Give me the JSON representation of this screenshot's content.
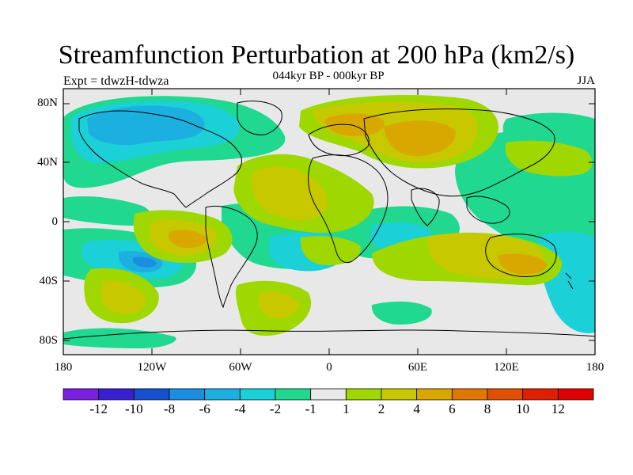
{
  "title": "Streamfunction Perturbation at 200 hPa (km2/s)",
  "subtitle": "044kyr BP - 000kyr BP",
  "left_label": "Expt = tdwzH-tdwza",
  "right_label": "JJA",
  "lat_labels": [
    "80N",
    "40N",
    "0",
    "40S",
    "80S"
  ],
  "lon_labels": [
    "180",
    "120W",
    "60W",
    "0",
    "60E",
    "120E",
    "180"
  ],
  "colorbar": {
    "ticks": [
      "-12",
      "-10",
      "-8",
      "-6",
      "-4",
      "-2",
      "-1",
      "1",
      "2",
      "4",
      "6",
      "8",
      "10",
      "12"
    ],
    "colors": [
      "#7a1fe0",
      "#3a1fd0",
      "#1550d0",
      "#1c8ee0",
      "#1cb0e0",
      "#1cd0d8",
      "#20d890",
      "#e8e8e8",
      "#9ed800",
      "#c8c800",
      "#d8a800",
      "#e07800",
      "#e05000",
      "#e01e00",
      "#e00000"
    ]
  },
  "map": {
    "background_color": "#e8e8e8",
    "regions": [
      {
        "name": "arctic-canada-negative",
        "level": "-6"
      },
      {
        "name": "north-atlantic-europe-positive",
        "level": "4"
      },
      {
        "name": "east-pacific-positive",
        "level": "6"
      },
      {
        "name": "south-pacific-negative",
        "level": "-6"
      },
      {
        "name": "australia-positive",
        "level": "6"
      },
      {
        "name": "south-indian-negative",
        "level": "-4"
      }
    ]
  }
}
